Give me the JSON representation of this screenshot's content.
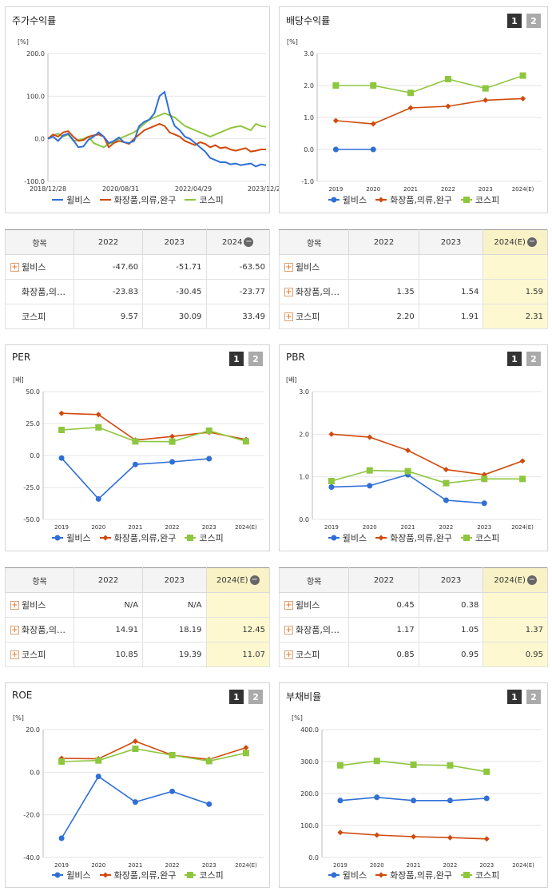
{
  "series_names": [
    "윌비스",
    "화장품,의류,완구",
    "코스피"
  ],
  "colors": {
    "s1": "#2f6fd6",
    "s2": "#d04a0c",
    "s3": "#8ec63f"
  },
  "panels": {
    "stock": {
      "title": "주가수익률",
      "unit": "[%]"
    },
    "dividend": {
      "title": "배당수익률",
      "unit": "[%]",
      "btn1": "1",
      "btn2": "2"
    },
    "per": {
      "title": "PER",
      "unit": "[배]",
      "btn1": "1",
      "btn2": "2"
    },
    "pbr": {
      "title": "PBR",
      "unit": "[배]",
      "btn1": "1",
      "btn2": "2"
    },
    "roe": {
      "title": "ROE",
      "unit": "[%]",
      "btn1": "1",
      "btn2": "2"
    },
    "debt": {
      "title": "부채비율",
      "unit": "[%]",
      "btn1": "1",
      "btn2": "2"
    }
  },
  "tables": {
    "stock": {
      "headers": [
        "항목",
        "2022",
        "2023",
        "2024"
      ],
      "rows": [
        {
          "name": "윌비스",
          "plus": true,
          "values": [
            "-47.60",
            "-51.71",
            "-63.50"
          ]
        },
        {
          "name": "화장품,의…",
          "plus": false,
          "values": [
            "-23.83",
            "-30.45",
            "-23.77"
          ]
        },
        {
          "name": "코스피",
          "plus": false,
          "values": [
            "9.57",
            "30.09",
            "33.49"
          ]
        }
      ]
    },
    "dividend": {
      "headers": [
        "항목",
        "2022",
        "2023",
        "2024(E)"
      ],
      "rows": [
        {
          "name": "윌비스",
          "plus": true,
          "values": [
            "",
            "",
            ""
          ]
        },
        {
          "name": "화장품,의…",
          "plus": true,
          "values": [
            "1.35",
            "1.54",
            "1.59"
          ]
        },
        {
          "name": "코스피",
          "plus": true,
          "values": [
            "2.20",
            "1.91",
            "2.31"
          ]
        }
      ]
    },
    "per": {
      "headers": [
        "항목",
        "2022",
        "2023",
        "2024(E)"
      ],
      "rows": [
        {
          "name": "윌비스",
          "plus": true,
          "values": [
            "N/A",
            "N/A",
            ""
          ]
        },
        {
          "name": "화장품,의…",
          "plus": true,
          "values": [
            "14.91",
            "18.19",
            "12.45"
          ]
        },
        {
          "name": "코스피",
          "plus": true,
          "values": [
            "10.85",
            "19.39",
            "11.07"
          ]
        }
      ]
    },
    "pbr": {
      "headers": [
        "항목",
        "2022",
        "2023",
        "2024(E)"
      ],
      "rows": [
        {
          "name": "윌비스",
          "plus": true,
          "values": [
            "0.45",
            "0.38",
            ""
          ]
        },
        {
          "name": "화장품,의…",
          "plus": true,
          "values": [
            "1.17",
            "1.05",
            "1.37"
          ]
        },
        {
          "name": "코스피",
          "plus": true,
          "values": [
            "0.85",
            "0.95",
            "0.95"
          ]
        }
      ]
    }
  },
  "chart_data": [
    {
      "id": "stock",
      "type": "line",
      "title": "주가수익률",
      "xticks": [
        "2018/12/28",
        "2020/08/31",
        "2022/04/29",
        "2023/12/28"
      ],
      "yticks": [
        "200.0",
        "100.0",
        "0.0",
        "-100.0"
      ],
      "ylim": [
        -100,
        200
      ],
      "series": [
        {
          "name": "윌비스",
          "values": [
            0,
            5,
            -5,
            8,
            12,
            -3,
            -20,
            -18,
            -2,
            5,
            15,
            5,
            -10,
            -5,
            3,
            -8,
            -10,
            -5,
            30,
            40,
            45,
            60,
            100,
            110,
            60,
            30,
            20,
            5,
            0,
            -10,
            -20,
            -30,
            -45,
            -50,
            -55,
            -55,
            -60,
            -58,
            -62,
            -60,
            -58,
            -65,
            -60,
            -62
          ]
        },
        {
          "name": "화장품,의류,완구",
          "values": [
            0,
            10,
            5,
            15,
            18,
            5,
            -5,
            -3,
            5,
            8,
            10,
            5,
            -20,
            -10,
            -5,
            -8,
            -12,
            0,
            10,
            20,
            25,
            30,
            35,
            30,
            15,
            10,
            5,
            -5,
            -10,
            -15,
            -8,
            -12,
            -20,
            -15,
            -22,
            -20,
            -25,
            -28,
            -25,
            -22,
            -30,
            -28,
            -25,
            -25
          ]
        },
        {
          "name": "코스피",
          "values": [
            0,
            8,
            12,
            5,
            10,
            -5,
            -3,
            0,
            5,
            -10,
            -15,
            -20,
            -12,
            -8,
            0,
            5,
            10,
            15,
            25,
            35,
            45,
            50,
            55,
            60,
            55,
            50,
            40,
            30,
            25,
            20,
            15,
            10,
            5,
            10,
            15,
            20,
            25,
            28,
            30,
            25,
            20,
            35,
            30,
            28
          ]
        }
      ]
    },
    {
      "id": "dividend",
      "type": "line",
      "title": "배당수익률",
      "categories": [
        "2019",
        "2020",
        "2021",
        "2022",
        "2023",
        "2024(E)"
      ],
      "yticks": [
        "3.0",
        "2.0",
        "1.0",
        "0.0",
        "-1.0"
      ],
      "ylim": [
        -1,
        3
      ],
      "series": [
        {
          "name": "윌비스",
          "values": [
            0,
            0,
            null,
            null,
            null,
            null
          ]
        },
        {
          "name": "화장품,의류,완구",
          "values": [
            0.9,
            0.8,
            1.3,
            1.35,
            1.54,
            1.59
          ]
        },
        {
          "name": "코스피",
          "values": [
            2.0,
            2.0,
            1.77,
            2.2,
            1.91,
            2.31
          ]
        }
      ]
    },
    {
      "id": "per",
      "type": "line",
      "title": "PER",
      "categories": [
        "2019",
        "2020",
        "2021",
        "2022",
        "2023",
        "2024(E)"
      ],
      "yticks": [
        "50.0",
        "25.0",
        "0.0",
        "-25.0",
        "-50.0"
      ],
      "ylim": [
        -50,
        50
      ],
      "series": [
        {
          "name": "윌비스",
          "values": [
            -2,
            -34,
            -7,
            -5,
            -2.5,
            null
          ]
        },
        {
          "name": "화장품,의류,완구",
          "values": [
            33,
            32,
            12,
            14.91,
            18.19,
            12.45
          ]
        },
        {
          "name": "코스피",
          "values": [
            20,
            22,
            11,
            10.85,
            19.39,
            11.07
          ]
        }
      ]
    },
    {
      "id": "pbr",
      "type": "line",
      "title": "PBR",
      "categories": [
        "2019",
        "2020",
        "2021",
        "2022",
        "2023",
        "2024(E)"
      ],
      "yticks": [
        "3.0",
        "2.0",
        "1.0",
        "0.0"
      ],
      "ylim": [
        0,
        3
      ],
      "series": [
        {
          "name": "윌비스",
          "values": [
            0.76,
            0.79,
            1.05,
            0.45,
            0.38,
            null
          ]
        },
        {
          "name": "화장품,의류,완구",
          "values": [
            2.0,
            1.93,
            1.62,
            1.17,
            1.05,
            1.37
          ]
        },
        {
          "name": "코스피",
          "values": [
            0.9,
            1.15,
            1.13,
            0.85,
            0.95,
            0.95
          ]
        }
      ]
    },
    {
      "id": "roe",
      "type": "line",
      "title": "ROE",
      "categories": [
        "2019",
        "2020",
        "2021",
        "2022",
        "2023",
        "2024(E)"
      ],
      "yticks": [
        "20.0",
        "0.0",
        "-20.0",
        "-40.0"
      ],
      "ylim": [
        -40,
        20
      ],
      "series": [
        {
          "name": "윌비스",
          "values": [
            -31,
            -2,
            -14,
            -9,
            -15,
            null
          ]
        },
        {
          "name": "화장품,의류,완구",
          "values": [
            6.5,
            6.3,
            14.5,
            8,
            6,
            11.5
          ]
        },
        {
          "name": "코스피",
          "values": [
            5,
            5.5,
            11,
            8,
            5.2,
            9
          ]
        }
      ]
    },
    {
      "id": "debt",
      "type": "line",
      "title": "부채비율",
      "categories": [
        "2019",
        "2020",
        "2021",
        "2022",
        "2023",
        "2024(E)"
      ],
      "yticks": [
        "400.0",
        "300.0",
        "200.0",
        "100.0",
        "0.0"
      ],
      "ylim": [
        0,
        400
      ],
      "series": [
        {
          "name": "윌비스",
          "values": [
            178,
            188,
            178,
            178,
            185,
            null
          ]
        },
        {
          "name": "화장품,의류,완구",
          "values": [
            78,
            70,
            65,
            62,
            58,
            null
          ]
        },
        {
          "name": "코스피",
          "values": [
            288,
            302,
            290,
            288,
            268,
            null
          ]
        }
      ]
    }
  ]
}
